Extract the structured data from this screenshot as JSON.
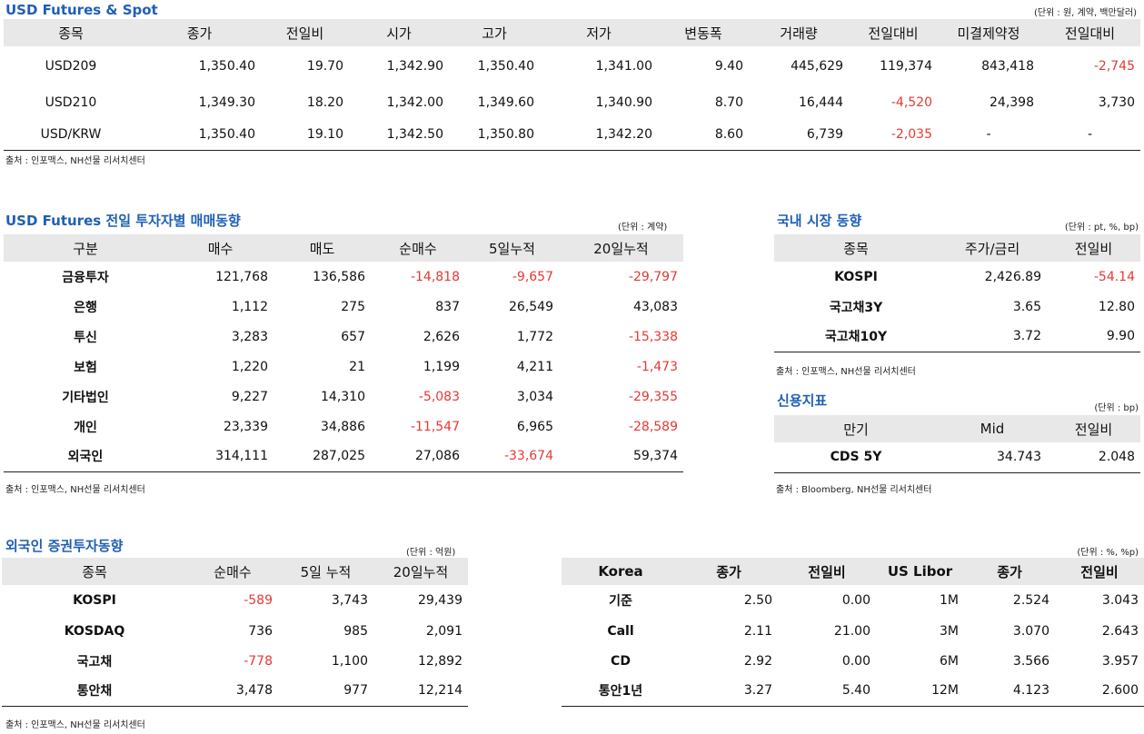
{
  "futures": {
    "title": "USD Futures & Spot",
    "unit": "(단위 : 원, 계약, 백만달러)",
    "headers": [
      "종목",
      "종가",
      "전일비",
      "시가",
      "고가",
      "저가",
      "변동폭",
      "거래량",
      "전일대비",
      "미결제약정",
      "전일대비"
    ],
    "rows": [
      [
        "USD209",
        "1,350.40",
        "19.70",
        "1,342.90",
        "1,350.40",
        "1,341.00",
        "9.40",
        "445,629",
        "119,374",
        "843,418",
        "-2,745"
      ],
      [
        "USD210",
        "1,349.30",
        "18.20",
        "1,342.00",
        "1,349.60",
        "1,340.90",
        "8.70",
        "16,444",
        "-4,520",
        "24,398",
        "3,730"
      ],
      [
        "USD/KRW",
        "1,350.40",
        "19.10",
        "1,342.50",
        "1,350.80",
        "1,342.20",
        "8.60",
        "6,739",
        "-2,035",
        "-",
        "-"
      ]
    ],
    "source": "출처 : 인포맥스, NH선물 리서치센터"
  },
  "investors": {
    "title": "USD Futures 전일 투자자별 매매동향",
    "unit": "(단위 : 계약)",
    "headers": [
      "구분",
      "매수",
      "매도",
      "순매수",
      "5일누적",
      "20일누적"
    ],
    "rows": [
      [
        "금융투자",
        "121,768",
        "136,586",
        "-14,818",
        "-9,657",
        "-29,797"
      ],
      [
        "은행",
        "1,112",
        "275",
        "837",
        "26,549",
        "43,083"
      ],
      [
        "투신",
        "3,283",
        "657",
        "2,626",
        "1,772",
        "-15,338"
      ],
      [
        "보험",
        "1,220",
        "21",
        "1,199",
        "4,211",
        "-1,473"
      ],
      [
        "기타법인",
        "9,227",
        "14,310",
        "-5,083",
        "3,034",
        "-29,355"
      ],
      [
        "개인",
        "23,339",
        "34,886",
        "-11,547",
        "6,965",
        "-28,589"
      ],
      [
        "외국인",
        "314,111",
        "287,025",
        "27,086",
        "-33,674",
        "59,374"
      ]
    ],
    "source": "출처 : 인포맥스, NH선물 리서치센터"
  },
  "domestic": {
    "title": "국내 시장 동향",
    "unit": "(단위 : pt, %, bp)",
    "headers": [
      "종목",
      "주가/금리",
      "전일비"
    ],
    "rows": [
      [
        "KOSPI",
        "2,426.89",
        "-54.14"
      ],
      [
        "국고채3Y",
        "3.65",
        "12.80"
      ],
      [
        "국고채10Y",
        "3.72",
        "9.90"
      ]
    ],
    "source": "출처 : 인포맥스, NH선물 리서치센터"
  },
  "credit": {
    "title": "신용지표",
    "unit": "(단위 : bp)",
    "headers": [
      "만기",
      "Mid",
      "전일비"
    ],
    "rows": [
      [
        "CDS 5Y",
        "34.743",
        "2.048"
      ]
    ],
    "source": "출처 : Bloomberg, NH선물 리서치센터"
  },
  "foreign": {
    "title": "외국인 증권투자동향",
    "unit": "(단위 : 억원)",
    "headers": [
      "종목",
      "순매수",
      "5일 누적",
      "20일누적"
    ],
    "rows": [
      [
        "KOSPI",
        "-589",
        "3,743",
        "29,439"
      ],
      [
        "KOSDAQ",
        "736",
        "985",
        "2,091"
      ],
      [
        "국고채",
        "-778",
        "1,100",
        "12,892"
      ],
      [
        "통안채",
        "3,478",
        "977",
        "12,214"
      ]
    ],
    "source": "출처 : 인포맥스, NH선물 리서치센터"
  },
  "rates": {
    "unit": "(단위 : %, %p)",
    "headers": [
      "Korea",
      "종가",
      "전일비",
      "US Libor",
      "종가",
      "전일비"
    ],
    "rows": [
      [
        "기준",
        "2.50",
        "0.00",
        "1M",
        "2.524",
        "3.043"
      ],
      [
        "Call",
        "2.11",
        "21.00",
        "3M",
        "3.070",
        "2.643"
      ],
      [
        "CD",
        "2.92",
        "0.00",
        "6M",
        "3.566",
        "3.957"
      ],
      [
        "통안1년",
        "3.27",
        "5.40",
        "12M",
        "4.123",
        "2.600"
      ]
    ]
  }
}
